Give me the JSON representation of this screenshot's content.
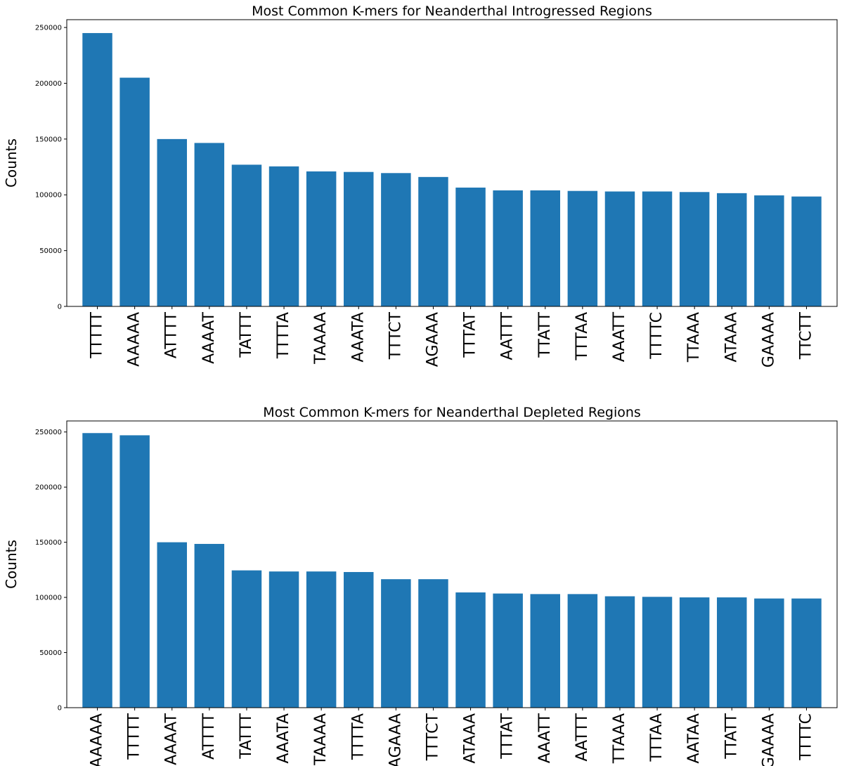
{
  "colors": {
    "bar": "#1f77b4",
    "axis": "#000000",
    "text": "#000000",
    "background": "#ffffff"
  },
  "chart_data": [
    {
      "type": "bar",
      "title": "Most Common K-mers for Neanderthal Introgressed Regions",
      "xlabel": "",
      "ylabel": "Counts",
      "ylim": [
        0,
        257000
      ],
      "yticks": [
        0,
        50000,
        100000,
        150000,
        200000,
        250000
      ],
      "ytick_labels": [
        "0",
        "50000",
        "100000",
        "150000",
        "200000",
        "250000"
      ],
      "grid": false,
      "categories": [
        "TTTTT",
        "AAAAA",
        "ATTTT",
        "AAAAT",
        "TATTT",
        "TTTTA",
        "TAAAA",
        "AAATA",
        "TTTCT",
        "AGAAA",
        "TTTAT",
        "AATTT",
        "TTATT",
        "TTTAA",
        "AAATT",
        "TTTTC",
        "TTAAA",
        "ATAAA",
        "GAAAA",
        "TTCTT"
      ],
      "values": [
        245000,
        205000,
        150000,
        146500,
        127000,
        125500,
        121000,
        120500,
        119500,
        116000,
        106500,
        104000,
        104000,
        103500,
        103000,
        103000,
        102500,
        101500,
        99500,
        98500
      ]
    },
    {
      "type": "bar",
      "title": "Most Common K-mers for Neanderthal Depleted Regions",
      "xlabel": "",
      "ylabel": "Counts",
      "ylim": [
        0,
        260000
      ],
      "yticks": [
        0,
        50000,
        100000,
        150000,
        200000,
        250000
      ],
      "ytick_labels": [
        "0",
        "50000",
        "100000",
        "150000",
        "200000",
        "250000"
      ],
      "grid": false,
      "categories": [
        "AAAAA",
        "TTTTT",
        "AAAAT",
        "ATTTT",
        "TATTT",
        "AAATA",
        "TAAAA",
        "TTTTA",
        "AGAAA",
        "TTTCT",
        "ATAAA",
        "TTTAT",
        "AAATT",
        "AATTT",
        "TTAAA",
        "TTTAA",
        "AATAA",
        "TTATT",
        "GAAAA",
        "TTTTC"
      ],
      "values": [
        249000,
        247000,
        150000,
        148500,
        124500,
        123500,
        123500,
        123000,
        116500,
        116500,
        104500,
        103500,
        103000,
        103000,
        101000,
        100500,
        100000,
        100000,
        99000,
        99000
      ]
    }
  ]
}
